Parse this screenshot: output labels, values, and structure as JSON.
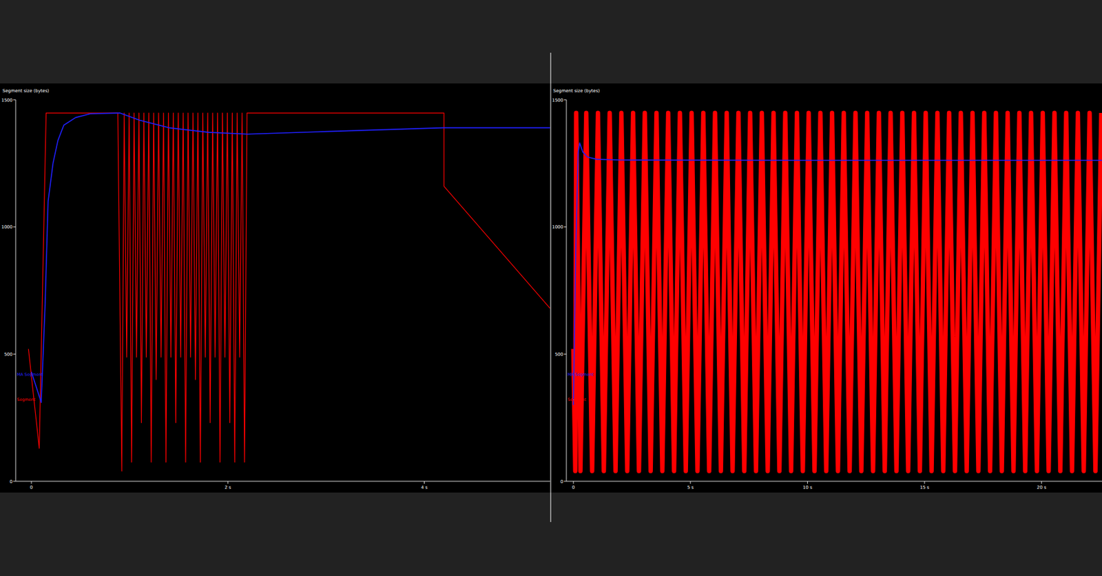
{
  "chart_data": [
    {
      "type": "line",
      "y_label": "Segment size (bytes)",
      "xlim": [
        -0.16,
        5.28
      ],
      "xticks": [
        0,
        {
          "value": 2,
          "label": "2 s"
        },
        {
          "value": 4,
          "label": "4 s"
        }
      ],
      "ylim": [
        0,
        1500
      ],
      "yticks": [
        0,
        500,
        1000,
        1500
      ],
      "series": [
        {
          "name": "Segment",
          "color": "#ff0000",
          "x": [
            -0.03,
            0.08,
            0.15,
            0.88,
            0.92,
            0.945,
            0.97,
            0.995,
            1.02,
            1.045,
            1.07,
            1.095,
            1.12,
            1.145,
            1.17,
            1.195,
            1.22,
            1.245,
            1.27,
            1.295,
            1.32,
            1.345,
            1.37,
            1.395,
            1.42,
            1.445,
            1.47,
            1.495,
            1.52,
            1.545,
            1.57,
            1.595,
            1.62,
            1.645,
            1.67,
            1.695,
            1.72,
            1.745,
            1.77,
            1.795,
            1.82,
            1.845,
            1.87,
            1.895,
            1.92,
            1.945,
            1.97,
            1.995,
            2.02,
            2.045,
            2.07,
            2.095,
            2.12,
            2.145,
            2.17,
            2.195,
            4.2,
            4.2,
            5.28
          ],
          "values": [
            520,
            130,
            1448,
            1448,
            40,
            1448,
            488,
            1448,
            75,
            1448,
            488,
            1448,
            230,
            1448,
            488,
            1448,
            75,
            1448,
            400,
            1448,
            488,
            1448,
            75,
            1448,
            488,
            1448,
            230,
            1448,
            488,
            1448,
            75,
            1448,
            488,
            1448,
            400,
            1448,
            75,
            1448,
            488,
            1448,
            230,
            1448,
            488,
            1448,
            75,
            1448,
            488,
            1448,
            230,
            1448,
            75,
            1448,
            488,
            1448,
            75,
            1448,
            1448,
            1160,
            680
          ]
        },
        {
          "name": "MA Segment",
          "color": "#2020ff",
          "x": [
            0.0,
            0.1,
            0.14,
            0.17,
            0.22,
            0.27,
            0.33,
            0.45,
            0.6,
            0.9,
            1.1,
            1.4,
            1.8,
            2.2,
            3.0,
            4.2,
            5.28
          ],
          "values": [
            430,
            310,
            700,
            1100,
            1250,
            1340,
            1400,
            1430,
            1445,
            1448,
            1420,
            1390,
            1372,
            1365,
            1375,
            1390,
            1390
          ]
        }
      ]
    },
    {
      "type": "line",
      "y_label": "Segment size (bytes)",
      "xlim": [
        -0.3,
        22.58
      ],
      "xticks": [
        0,
        {
          "value": 5,
          "label": "5 s"
        },
        {
          "value": 10,
          "label": "10 s"
        },
        {
          "value": 15,
          "label": "15 s"
        },
        {
          "value": 20,
          "label": "20 s"
        }
      ],
      "ylim": [
        0,
        1500
      ],
      "yticks": [
        0,
        500,
        1000,
        1500
      ],
      "series": [
        {
          "name": "Segment",
          "color": "#ff0000",
          "x": [
            0.0,
            0.08,
            0.12,
            0.3,
            0.55,
            0.8,
            1.05,
            1.3,
            1.55,
            1.8,
            2.05,
            2.3,
            2.55,
            2.8,
            3.05,
            3.3,
            3.55,
            3.8,
            4.05,
            4.3,
            4.55,
            4.8,
            5.05,
            5.3,
            5.55,
            5.8,
            6.05,
            6.3,
            6.55,
            6.8,
            7.05,
            7.3,
            7.55,
            7.8,
            8.05,
            8.3,
            8.55,
            8.8,
            9.05,
            9.3,
            9.55,
            9.8,
            10.05,
            10.3,
            10.55,
            10.8,
            11.05,
            11.3,
            11.55,
            11.8,
            12.05,
            12.3,
            12.55,
            12.8,
            13.05,
            13.3,
            13.55,
            13.8,
            14.05,
            14.3,
            14.55,
            14.8,
            15.05,
            15.3,
            15.55,
            15.8,
            16.05,
            16.3,
            16.55,
            16.8,
            17.05,
            17.3,
            17.55,
            17.8,
            18.05,
            18.3,
            18.55,
            18.8,
            19.05,
            19.3,
            19.55,
            19.8,
            20.05,
            20.3,
            20.55,
            20.8,
            21.05,
            21.3,
            21.55,
            21.8,
            22.05,
            22.3,
            22.55
          ],
          "values": [
            520,
            40,
            1448,
            40,
            1448,
            40,
            1448,
            40,
            1448,
            40,
            1448,
            40,
            1448,
            40,
            1448,
            40,
            1448,
            40,
            1448,
            40,
            1448,
            40,
            1448,
            40,
            1448,
            40,
            1448,
            40,
            1448,
            40,
            1448,
            40,
            1448,
            40,
            1448,
            40,
            1448,
            40,
            1448,
            40,
            1448,
            40,
            1448,
            40,
            1448,
            40,
            1448,
            40,
            1448,
            40,
            1448,
            40,
            1448,
            40,
            1448,
            40,
            1448,
            40,
            1448,
            40,
            1448,
            40,
            1448,
            40,
            1448,
            40,
            1448,
            40,
            1448,
            40,
            1448,
            40,
            1448,
            40,
            1448,
            40,
            1448,
            40,
            1448,
            40,
            1448,
            40,
            1448,
            40,
            1448,
            40,
            1448,
            40,
            1448,
            40,
            1448,
            40,
            1448
          ]
        },
        {
          "name": "MA Segment",
          "color": "#2020ff",
          "x": [
            0.0,
            0.1,
            0.2,
            0.27,
            0.4,
            0.6,
            1.0,
            2.0,
            10.0,
            22.58
          ],
          "values": [
            300,
            900,
            1290,
            1330,
            1295,
            1275,
            1266,
            1263,
            1262,
            1262
          ]
        }
      ]
    }
  ]
}
